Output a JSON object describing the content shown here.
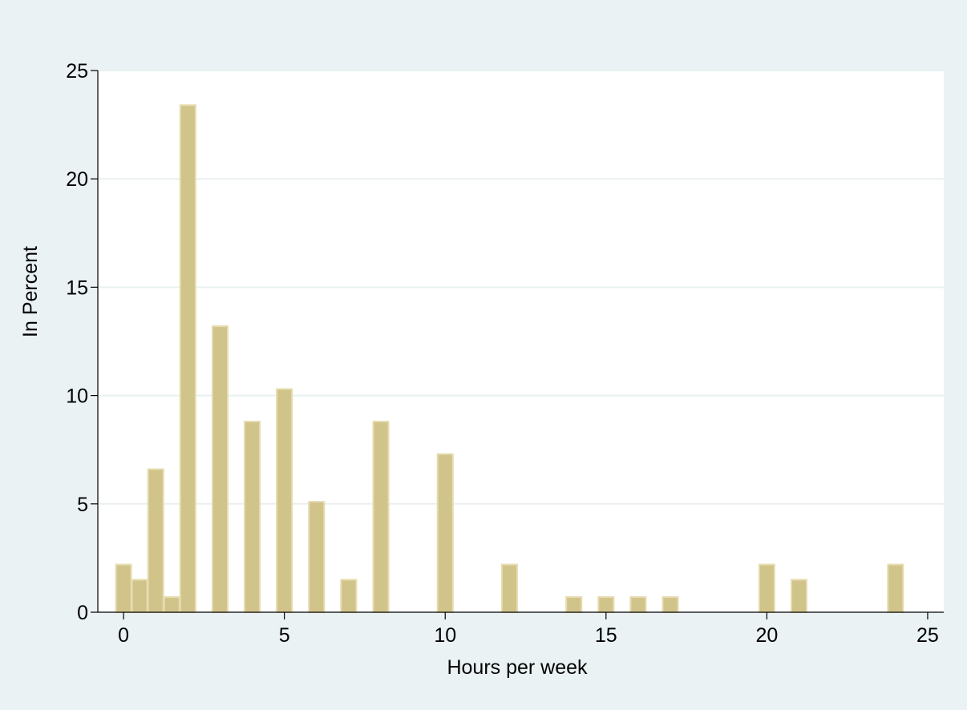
{
  "chart_data": {
    "type": "bar",
    "title": "",
    "xlabel": "Hours per week",
    "ylabel": "In Percent",
    "xlim": [
      -0.8,
      25.5
    ],
    "ylim": [
      0,
      25
    ],
    "xticks": [
      0,
      5,
      10,
      15,
      20,
      25
    ],
    "yticks": [
      0,
      5,
      10,
      15,
      20,
      25
    ],
    "grid": true,
    "bar_width": 0.5,
    "colors": {
      "background": "#eaf2f3",
      "plot": "#ffffff",
      "bar_fill": "#d1c48a",
      "bar_stroke": "#e6dcb0",
      "grid": "#e9f0f0",
      "axis": "#000000"
    },
    "x": [
      0,
      0.5,
      1,
      1.5,
      2,
      3,
      4,
      5,
      6,
      7,
      8,
      10,
      12,
      14,
      15,
      16,
      17,
      20,
      21,
      24
    ],
    "values": [
      2.2,
      1.5,
      6.6,
      0.7,
      23.4,
      13.2,
      8.8,
      10.3,
      5.1,
      1.5,
      8.8,
      7.3,
      2.2,
      0.7,
      0.7,
      0.7,
      0.7,
      2.2,
      1.5,
      2.2
    ]
  }
}
